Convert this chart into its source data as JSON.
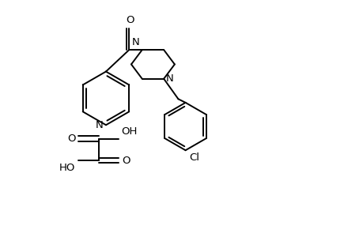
{
  "bg_color": "#ffffff",
  "line_color": "#000000",
  "line_width": 1.4,
  "font_size": 9.5,
  "fig_width": 4.6,
  "fig_height": 3.0,
  "dpi": 100,
  "xlim": [
    0.0,
    5.0
  ],
  "ylim": [
    0.5,
    3.5
  ]
}
